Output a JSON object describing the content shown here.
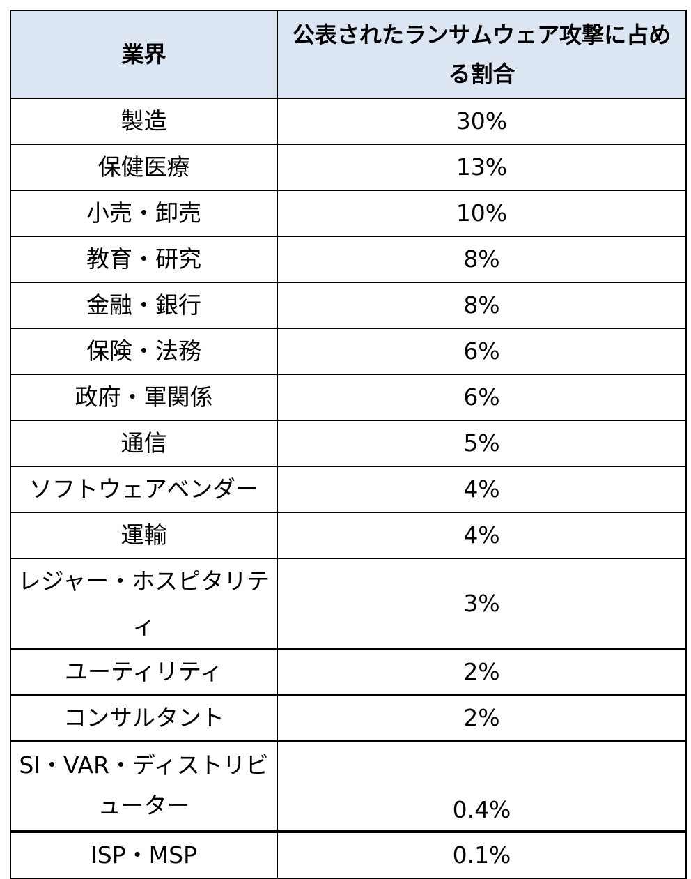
{
  "table": {
    "headers": [
      "業界",
      "公表されたランサムウェア攻撃に占める割合"
    ],
    "rows": [
      {
        "industry": "製造",
        "share": "30%"
      },
      {
        "industry": "保健医療",
        "share": "13%"
      },
      {
        "industry": "小売・卸売",
        "share": "10%"
      },
      {
        "industry": "教育・研究",
        "share": "8%"
      },
      {
        "industry": "金融・銀行",
        "share": "8%"
      },
      {
        "industry": "保険・法務",
        "share": "6%"
      },
      {
        "industry": "政府・軍関係",
        "share": "6%"
      },
      {
        "industry": "通信",
        "share": "5%"
      },
      {
        "industry": "ソフトウェアベンダー",
        "share": "4%"
      },
      {
        "industry": "運輸",
        "share": "4%"
      },
      {
        "industry": "レジャー・ホスピタリティ",
        "share": "3%"
      },
      {
        "industry": "ユーティリティ",
        "share": "2%"
      },
      {
        "industry": "コンサルタント",
        "share": "2%"
      },
      {
        "industry": "SI・VAR・ディストリビューター",
        "share": "0.4%"
      },
      {
        "industry": "ISP・MSP",
        "share": "0.1%"
      }
    ]
  }
}
